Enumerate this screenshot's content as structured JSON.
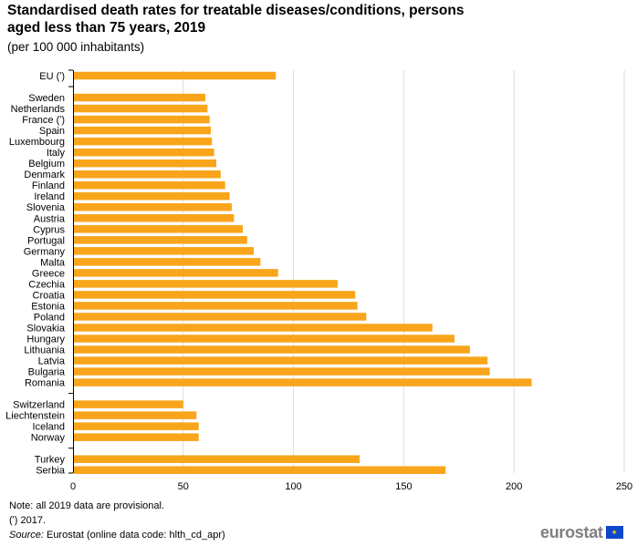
{
  "chart_data": {
    "type": "bar",
    "orientation": "horizontal",
    "title": "Standardised death rates for treatable diseases/conditions, persons aged less than 75 years, 2019",
    "title_lines": [
      "Standardised death rates for treatable diseases/conditions, persons",
      "aged less than 75 years, 2019"
    ],
    "subtitle": "(per 100 000 inhabitants)",
    "xlabel": "",
    "ylabel": "",
    "xlim": [
      0,
      250
    ],
    "xticks": [
      0,
      50,
      100,
      150,
      200,
      250
    ],
    "grid": true,
    "bar_color": "#f9a51b",
    "groups": [
      {
        "categories": [
          "EU (ʹ)"
        ],
        "values": [
          92
        ]
      },
      {
        "categories": [
          "Sweden",
          "Netherlands",
          "France (ʹ)",
          "Spain",
          "Luxembourg",
          "Italy",
          "Belgium",
          "Denmark",
          "Finland",
          "Ireland",
          "Slovenia",
          "Austria",
          "Cyprus",
          "Portugal",
          "Germany",
          "Malta",
          "Greece",
          "Czechia",
          "Croatia",
          "Estonia",
          "Poland",
          "Slovakia",
          "Hungary",
          "Lithuania",
          "Latvia",
          "Bulgaria",
          "Romania"
        ],
        "values": [
          60,
          61,
          62,
          62.5,
          63,
          64,
          65,
          67,
          69,
          71,
          72,
          73,
          77,
          79,
          82,
          85,
          93,
          120,
          128,
          129,
          133,
          163,
          173,
          180,
          188,
          189,
          208
        ]
      },
      {
        "categories": [
          "Switzerland",
          "Liechtenstein",
          "Iceland",
          "Norway"
        ],
        "values": [
          50,
          56,
          57,
          57
        ]
      },
      {
        "categories": [
          "Turkey",
          "Serbia"
        ],
        "values": [
          130,
          169
        ]
      }
    ]
  },
  "footer": {
    "note": "Note: all 2019 data are provisional.",
    "footnote": "(ʹ) 2017.",
    "source_label": "Source:",
    "source_text": " Eurostat (online data code: hlth_cd_apr)"
  },
  "logo": {
    "text": "eurostat",
    "stars": "★"
  }
}
